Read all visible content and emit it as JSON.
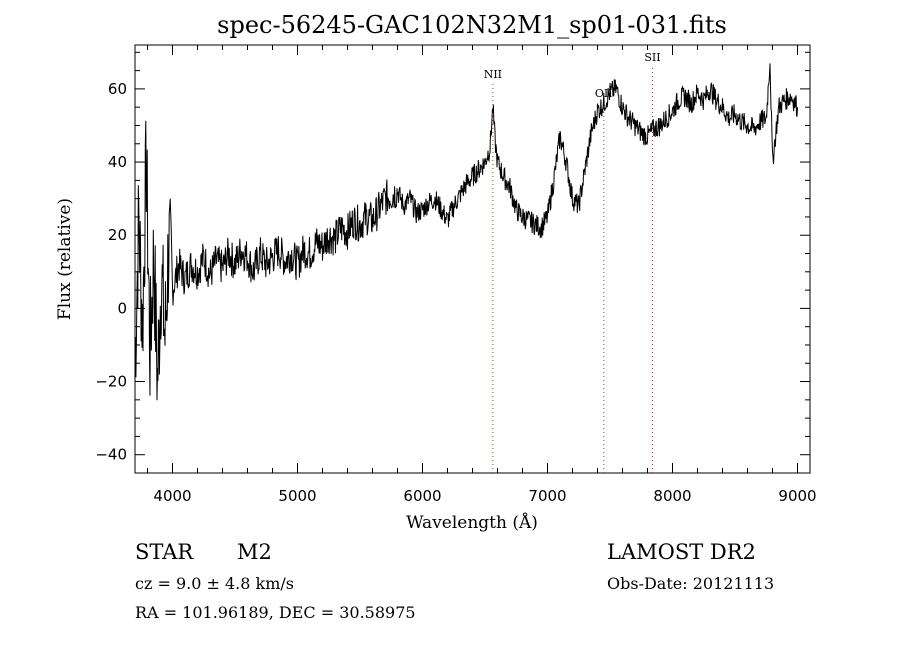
{
  "chart_data": {
    "type": "line",
    "title": "spec-56245-GAC102N32M1_sp01-031.fits",
    "xlabel": "Wavelength (Å)",
    "ylabel": "Flux (relative)",
    "xlim": [
      3700,
      9100
    ],
    "ylim": [
      -45,
      72
    ],
    "xticks": [
      4000,
      5000,
      6000,
      7000,
      8000,
      9000
    ],
    "yticks": [
      -40,
      -20,
      0,
      20,
      40,
      60
    ],
    "grid": false,
    "line_color": "#000000",
    "marker_color": "#c0392b",
    "series": [
      {
        "x": [
          3700,
          3730,
          3760,
          3790,
          3820,
          3850,
          3880,
          3910,
          3940,
          3970,
          4000,
          4050,
          4100,
          4150,
          4200,
          4250,
          4300,
          4350,
          4400,
          4450,
          4500,
          4550,
          4600,
          4650,
          4700,
          4750,
          4800,
          4850,
          4900,
          4950,
          5000,
          5050,
          5100,
          5150,
          5200,
          5250,
          5300,
          5350,
          5400,
          5450,
          5500,
          5550,
          5600,
          5650,
          5700,
          5750,
          5800,
          5850,
          5900,
          5950,
          6000,
          6050,
          6100,
          6150,
          6200,
          6250,
          6300,
          6350,
          6400,
          6450,
          6500,
          6540,
          6563,
          6580,
          6600,
          6650,
          6700,
          6750,
          6800,
          6850,
          6900,
          6950,
          7000,
          7050,
          7100,
          7150,
          7200,
          7250,
          7300,
          7350,
          7400,
          7450,
          7500,
          7550,
          7600,
          7650,
          7700,
          7750,
          7800,
          7850,
          7900,
          7950,
          8000,
          8050,
          8100,
          8150,
          8200,
          8250,
          8300,
          8350,
          8400,
          8450,
          8500,
          8550,
          8600,
          8650,
          8700,
          8750,
          8780,
          8800,
          8850,
          8900,
          8950,
          9000
        ],
        "y": [
          -15,
          25,
          -5,
          40,
          -12,
          15,
          -20,
          10,
          -8,
          18,
          5,
          12,
          8,
          12,
          10,
          14,
          9,
          13,
          11,
          15,
          12,
          16,
          14,
          10,
          15,
          12,
          14,
          16,
          13,
          15,
          12,
          16,
          15,
          18,
          17,
          20,
          19,
          22,
          21,
          24,
          23,
          25,
          24,
          27,
          30,
          31,
          32,
          28,
          30,
          26,
          27,
          29,
          30,
          27,
          24,
          28,
          31,
          34,
          36,
          38,
          40,
          44,
          55,
          46,
          40,
          36,
          33,
          27,
          25,
          24,
          23,
          22,
          25,
          35,
          47,
          40,
          30,
          28,
          38,
          48,
          54,
          56,
          59,
          60,
          55,
          52,
          50,
          48,
          47,
          49,
          50,
          52,
          54,
          57,
          58,
          56,
          59,
          57,
          60,
          57,
          55,
          52,
          53,
          51,
          50,
          49,
          51,
          52,
          68,
          40,
          55,
          57,
          58,
          55
        ]
      }
    ],
    "annotations": [
      {
        "x": 6563,
        "label": "NII"
      },
      {
        "x": 7450,
        "label": "OII"
      },
      {
        "x": 7840,
        "label": "SII"
      }
    ]
  },
  "info": {
    "object_class": "STAR",
    "subclass": "M2",
    "survey": "LAMOST DR2",
    "cz": "cz = 9.0 ± 4.8 km/s",
    "obs_date": "Obs-Date: 20121113",
    "coords": "RA = 101.96189, DEC =  30.58975"
  }
}
